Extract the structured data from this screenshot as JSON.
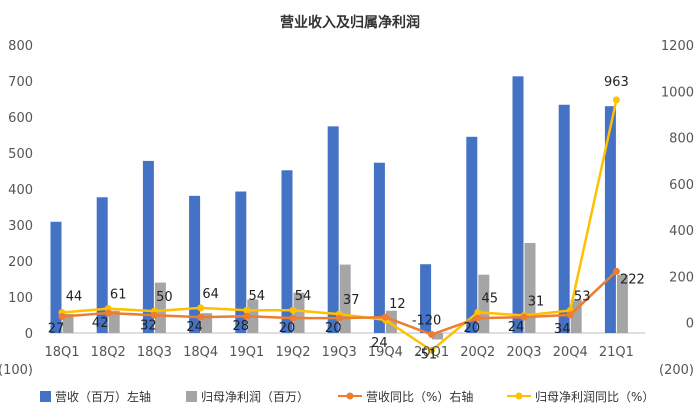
{
  "chart_data": {
    "type": "bar",
    "title": "营业收入及归属净利润",
    "categories": [
      "18Q1",
      "18Q2",
      "18Q3",
      "18Q4",
      "19Q1",
      "19Q2",
      "19Q3",
      "19Q4",
      "20Q1",
      "20Q2",
      "20Q3",
      "20Q4",
      "21Q1"
    ],
    "left_axis": {
      "ylim": [
        -100,
        800
      ],
      "ticks": [
        "(100)",
        "0",
        "100",
        "200",
        "300",
        "400",
        "500",
        "600",
        "700",
        "800"
      ],
      "tick_values": [
        -100,
        0,
        100,
        200,
        300,
        400,
        500,
        600,
        700,
        800
      ]
    },
    "right_axis": {
      "ylim": [
        -200,
        1200
      ],
      "ticks": [
        "(200)",
        "0",
        "200",
        "400",
        "600",
        "800",
        "1000",
        "1200"
      ],
      "tick_values": [
        -200,
        0,
        200,
        400,
        600,
        800,
        1000,
        1200
      ]
    },
    "series": [
      {
        "name": "营收（百万）左轴",
        "type": "bar",
        "axis": "left",
        "color": "#4472C4",
        "values": [
          309,
          377,
          478,
          381,
          393,
          452,
          574,
          473,
          191,
          545,
          713,
          634,
          630
        ]
      },
      {
        "name": "归母净利润（百万）",
        "type": "bar",
        "axis": "left",
        "color": "#A5A5A5",
        "values": [
          53,
          62,
          140,
          55,
          93,
          112,
          190,
          62,
          -18,
          162,
          250,
          93,
          162
        ]
      },
      {
        "name": "营收同比（%）右轴",
        "type": "line",
        "axis": "right",
        "color": "#ED7D31",
        "values": [
          27,
          42,
          32,
          24,
          28,
          20,
          20,
          24,
          -51,
          20,
          24,
          34,
          222
        ],
        "labels": [
          "27",
          "42",
          "32",
          "24",
          "28",
          "20",
          "20",
          "24",
          "-51",
          "20",
          "24",
          "34",
          "222"
        ]
      },
      {
        "name": "归母净利润同比（%）",
        "type": "line",
        "axis": "right",
        "color": "#FFC000",
        "values": [
          44,
          61,
          50,
          64,
          54,
          54,
          37,
          12,
          -120,
          45,
          31,
          53,
          963
        ],
        "labels": [
          "44",
          "61",
          "50",
          "64",
          "54",
          "54",
          "37",
          "12",
          "-120",
          "45",
          "31",
          "53",
          "963"
        ]
      }
    ]
  }
}
